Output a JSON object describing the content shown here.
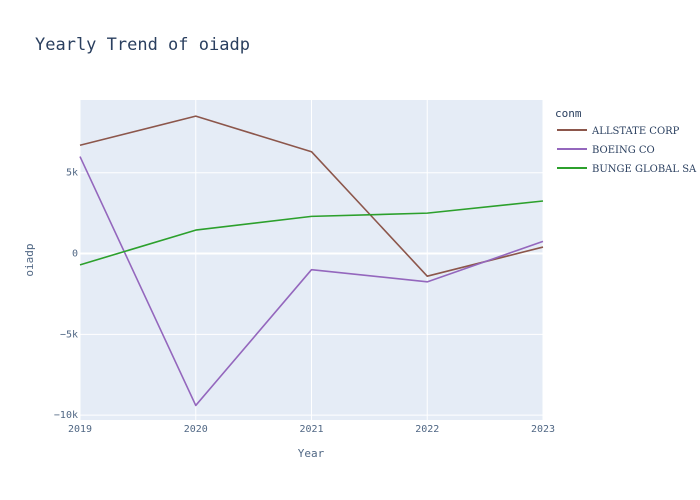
{
  "chart_data": {
    "type": "line",
    "title": "Yearly Trend of oiadp",
    "xlabel": "Year",
    "ylabel": "oiadp",
    "x": [
      2019,
      2020,
      2021,
      2022,
      2023
    ],
    "xlim": [
      2019,
      2023
    ],
    "ylim": [
      -10300,
      9500
    ],
    "yticks": [
      -10000,
      -5000,
      0,
      5000
    ],
    "ytick_labels": [
      "−10k",
      "−5k",
      "0",
      "5k"
    ],
    "grid": true,
    "legend_title": "conm",
    "legend_position": "right",
    "series": [
      {
        "name": "ALLSTATE CORP",
        "color": "#8c564b",
        "values": [
          6700,
          8500,
          6300,
          -1400,
          400
        ]
      },
      {
        "name": "BOEING CO",
        "color": "#9467bd",
        "values": [
          6000,
          -9400,
          -1000,
          -1750,
          750
        ]
      },
      {
        "name": "BUNGE GLOBAL SA",
        "color": "#2ca02c",
        "values": [
          -700,
          1450,
          2300,
          2500,
          3250
        ]
      }
    ],
    "colors": {
      "plot_bg": "#e5ecf6",
      "grid": "#ffffff",
      "text": "#506784"
    }
  }
}
